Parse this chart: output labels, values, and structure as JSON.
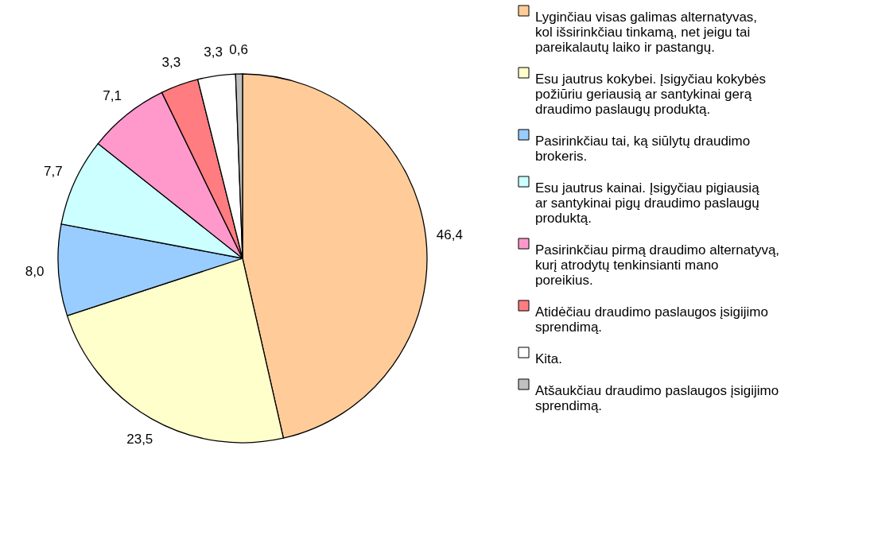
{
  "chart_data": {
    "type": "pie",
    "categories": [
      "Lyginčiau visas galimas alternatyvas, kol išsirinkčiau tinkamą, net jeigu tai pareikalautų laiko ir pastangų.",
      "Esu jautrus kokybei. Įsigyčiau kokybės požiūriu geriausią ar santykinai gerą draudimo paslaugų produktą.",
      "Pasirinkčiau tai, ką siūlytų draudimo brokeris.",
      "Esu jautrus kainai. Įsigyčiau pigiausią ar santykinai pigų draudimo paslaugų produktą.",
      "Pasirinkčiau pirmą draudimo alternatyvą, kurį atrodytų tenkinsianti mano poreikius.",
      "Atidėčiau draudimo paslaugos įsigijimo sprendimą.",
      "Kita.",
      "Atšaukčiau draudimo paslaugos įsigijimo sprendimą."
    ],
    "values": [
      46.4,
      23.5,
      8.0,
      7.7,
      7.1,
      3.3,
      3.3,
      0.6
    ],
    "value_labels": [
      "46,4",
      "23,5",
      "8,0",
      "7,7",
      "7,1",
      "3,3",
      "3,3",
      "0,6"
    ],
    "colors": [
      "#ffcc99",
      "#ffffcc",
      "#99ccff",
      "#ccffff",
      "#ff99cc",
      "#ff7c80",
      "#ffffff",
      "#c0c0c0"
    ],
    "legend": "right"
  }
}
